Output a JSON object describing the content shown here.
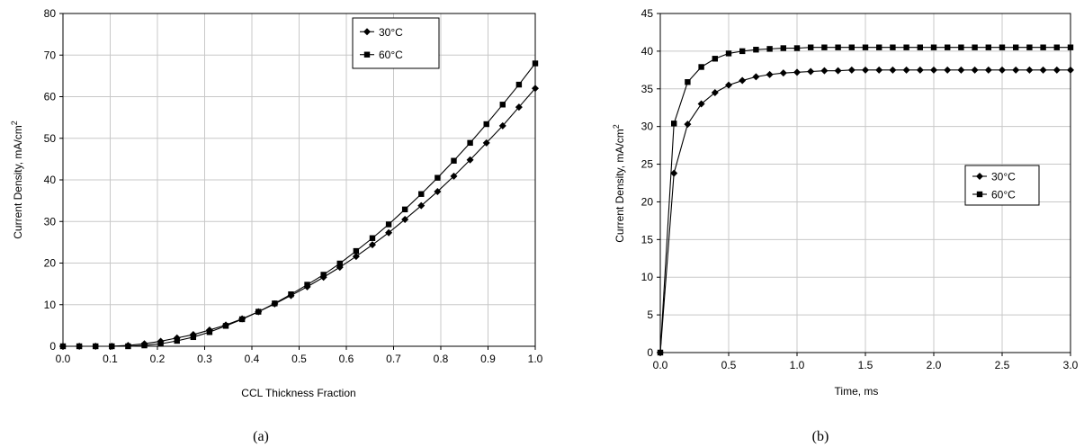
{
  "chart_data": [
    {
      "type": "line",
      "caption": "(a)",
      "xlabel": "CCL Thickness Fraction",
      "ylabel": "Current Density, mA/cm",
      "ylabel_sup": "2",
      "xlim": [
        0,
        1
      ],
      "ylim": [
        0,
        80
      ],
      "xticks": [
        "0.0",
        "0.1",
        "0.2",
        "0.3",
        "0.4",
        "0.5",
        "0.6",
        "0.7",
        "0.8",
        "0.9",
        "1.0"
      ],
      "yticks": [
        "0",
        "10",
        "20",
        "30",
        "40",
        "50",
        "60",
        "70",
        "80"
      ],
      "grid": true,
      "legend_position": "top-right",
      "series": [
        {
          "name": "30°C",
          "marker": "diamond",
          "x": [
            0,
            0.0345,
            0.069,
            0.1034,
            0.1379,
            0.1724,
            0.2069,
            0.2414,
            0.2759,
            0.3103,
            0.3448,
            0.3793,
            0.4138,
            0.4483,
            0.4828,
            0.5172,
            0.5517,
            0.5862,
            0.6207,
            0.6552,
            0.6897,
            0.7241,
            0.7586,
            0.7931,
            0.8276,
            0.8621,
            0.8966,
            0.931,
            0.9655,
            1.0
          ],
          "y": [
            0,
            0,
            0,
            0,
            0.2,
            0.6,
            1.2,
            2.0,
            2.8,
            3.9,
            5.1,
            6.6,
            8.3,
            10.2,
            12.2,
            14.3,
            16.6,
            19.0,
            21.6,
            24.4,
            27.3,
            30.5,
            33.8,
            37.2,
            40.9,
            44.8,
            48.9,
            53.0,
            57.5,
            62.0
          ]
        },
        {
          "name": "60°C",
          "marker": "square",
          "x": [
            0,
            0.0345,
            0.069,
            0.1034,
            0.1379,
            0.1724,
            0.2069,
            0.2414,
            0.2759,
            0.3103,
            0.3448,
            0.3793,
            0.4138,
            0.4483,
            0.4828,
            0.5172,
            0.5517,
            0.5862,
            0.6207,
            0.6552,
            0.6897,
            0.7241,
            0.7586,
            0.7931,
            0.8276,
            0.8621,
            0.8966,
            0.931,
            0.9655,
            1.0
          ],
          "y": [
            0,
            0,
            0,
            0,
            0,
            0.2,
            0.6,
            1.3,
            2.2,
            3.4,
            4.9,
            6.5,
            8.3,
            10.3,
            12.5,
            14.8,
            17.2,
            19.9,
            22.9,
            26.0,
            29.3,
            32.9,
            36.6,
            40.5,
            44.6,
            48.9,
            53.4,
            58.1,
            62.9,
            68.0
          ]
        }
      ]
    },
    {
      "type": "line",
      "caption": "(b)",
      "xlabel": "Time, ms",
      "ylabel": "Current Density, mA/cm",
      "ylabel_sup": "2",
      "xlim": [
        0,
        3
      ],
      "ylim": [
        0,
        45
      ],
      "xticks": [
        "0.0",
        "0.5",
        "1.0",
        "1.5",
        "2.0",
        "2.5",
        "3.0"
      ],
      "yticks": [
        "0",
        "5",
        "10",
        "15",
        "20",
        "25",
        "30",
        "35",
        "40",
        "45"
      ],
      "grid": true,
      "legend_position": "center-right",
      "series": [
        {
          "name": "30°C",
          "marker": "diamond",
          "x": [
            0,
            0.1,
            0.2,
            0.3,
            0.4,
            0.5,
            0.6,
            0.7,
            0.8,
            0.9,
            1.0,
            1.1,
            1.2,
            1.3,
            1.4,
            1.5,
            1.6,
            1.7,
            1.8,
            1.9,
            2.0,
            2.1,
            2.2,
            2.3,
            2.4,
            2.5,
            2.6,
            2.7,
            2.8,
            2.9,
            3.0
          ],
          "y": [
            0,
            23.8,
            30.3,
            33.0,
            34.5,
            35.5,
            36.1,
            36.6,
            36.9,
            37.1,
            37.2,
            37.3,
            37.4,
            37.4,
            37.5,
            37.5,
            37.5,
            37.5,
            37.5,
            37.5,
            37.5,
            37.5,
            37.5,
            37.5,
            37.5,
            37.5,
            37.5,
            37.5,
            37.5,
            37.5,
            37.5
          ]
        },
        {
          "name": "60°C",
          "marker": "square",
          "x": [
            0,
            0.1,
            0.2,
            0.3,
            0.4,
            0.5,
            0.6,
            0.7,
            0.8,
            0.9,
            1.0,
            1.1,
            1.2,
            1.3,
            1.4,
            1.5,
            1.6,
            1.7,
            1.8,
            1.9,
            2.0,
            2.1,
            2.2,
            2.3,
            2.4,
            2.5,
            2.6,
            2.7,
            2.8,
            2.9,
            3.0
          ],
          "y": [
            0,
            30.4,
            35.9,
            37.9,
            39.0,
            39.7,
            40.0,
            40.2,
            40.3,
            40.4,
            40.4,
            40.5,
            40.5,
            40.5,
            40.5,
            40.5,
            40.5,
            40.5,
            40.5,
            40.5,
            40.5,
            40.5,
            40.5,
            40.5,
            40.5,
            40.5,
            40.5,
            40.5,
            40.5,
            40.5,
            40.5
          ]
        }
      ]
    }
  ]
}
